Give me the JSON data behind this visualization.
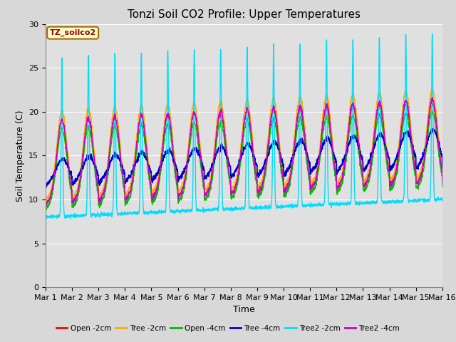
{
  "title": "Tonzi Soil CO2 Profile: Upper Temperatures",
  "xlabel": "Time",
  "ylabel": "Soil Temperature (C)",
  "ylim": [
    0,
    30
  ],
  "xlim": [
    0,
    15
  ],
  "fig_bg": "#d8d8d8",
  "plot_bg": "#e0e0e0",
  "legend_label": "TZ_soilco2",
  "legend_box_color": "#ffffcc",
  "legend_box_edge": "#aa6600",
  "series": [
    {
      "label": "Open -2cm",
      "color": "#ff0000"
    },
    {
      "label": "Tree -2cm",
      "color": "#ffaa00"
    },
    {
      "label": "Open -4cm",
      "color": "#00bb00"
    },
    {
      "label": "Tree -4cm",
      "color": "#0000cc"
    },
    {
      "label": "Tree2 -2cm",
      "color": "#00ddff"
    },
    {
      "label": "Tree2 -4cm",
      "color": "#cc00cc"
    }
  ],
  "xtick_labels": [
    "Mar 1",
    "Mar 2",
    "Mar 3",
    "Mar 4",
    "Mar 5",
    "Mar 6",
    "Mar 7",
    "Mar 8",
    "Mar 9",
    "Mar 10",
    "Mar 11",
    "Mar 12",
    "Mar 13",
    "Mar 14",
    "Mar 15",
    "Mar 16"
  ],
  "ytick_vals": [
    0,
    5,
    10,
    15,
    20,
    25,
    30
  ],
  "title_fontsize": 11,
  "axis_label_fontsize": 9,
  "tick_fontsize": 8
}
